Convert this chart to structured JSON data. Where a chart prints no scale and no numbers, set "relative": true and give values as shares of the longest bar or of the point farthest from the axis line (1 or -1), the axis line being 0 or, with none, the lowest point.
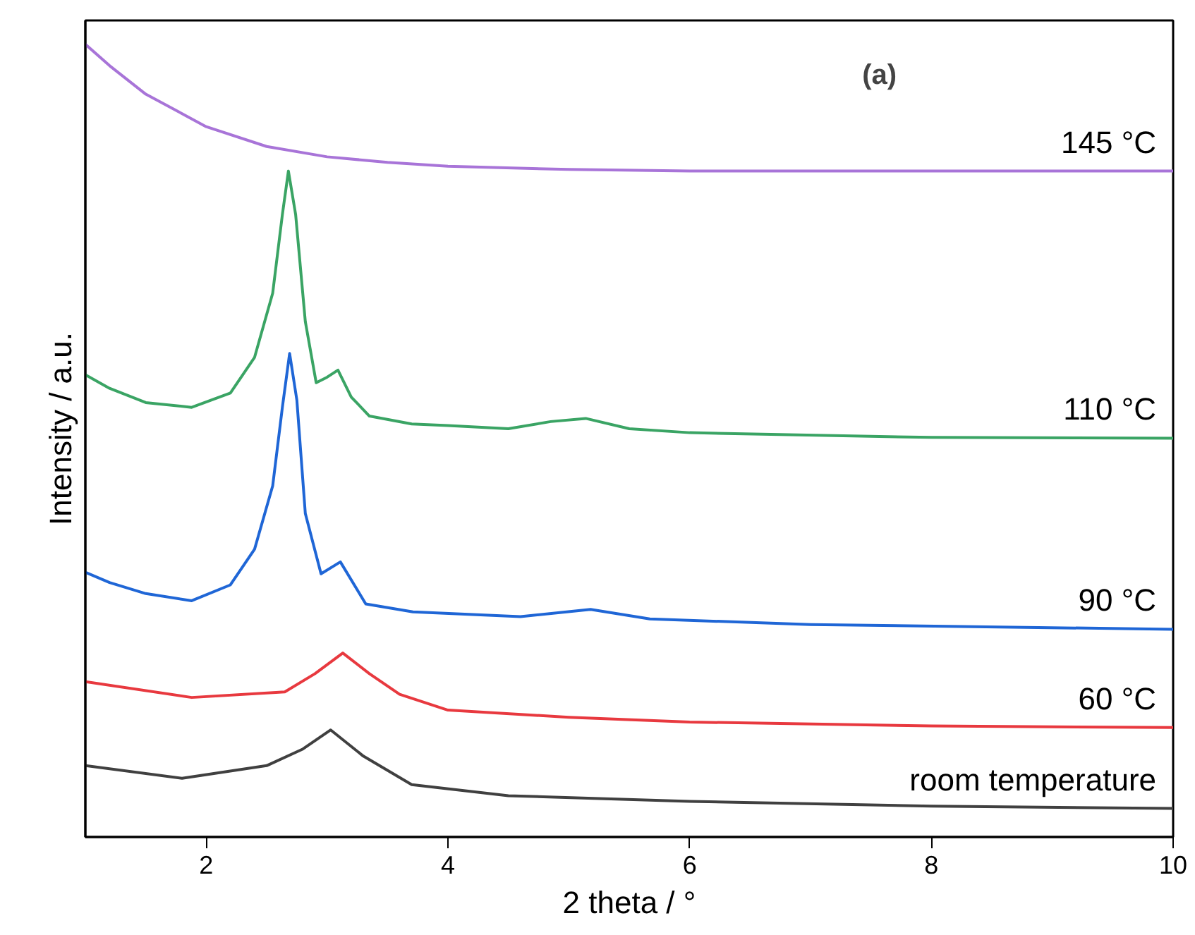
{
  "chart_data": {
    "type": "line",
    "relative": true,
    "xlabel": "2 theta / °",
    "ylabel": "Intensity / a.u.",
    "xlim": [
      1,
      10
    ],
    "xticks": [
      2,
      4,
      6,
      8,
      10
    ],
    "tick_labels": "x",
    "grid": false,
    "marker": "none",
    "line_style": "solid",
    "annotations": [
      "(a)"
    ],
    "series": [
      {
        "name": "room temperature",
        "color": "#404040",
        "x": [
          1,
          1.8,
          2.5,
          2.8,
          3.03,
          3.3,
          3.7,
          4.5,
          6,
          8,
          10
        ],
        "values": [
          0.09,
          0.074,
          0.09,
          0.111,
          0.135,
          0.102,
          0.066,
          0.052,
          0.045,
          0.039,
          0.036
        ]
      },
      {
        "name": "60 °C",
        "color": "#e8393f",
        "x": [
          1,
          1.88,
          2.65,
          2.9,
          3.13,
          3.35,
          3.6,
          4.0,
          5,
          6,
          8,
          10
        ],
        "values": [
          0.196,
          0.176,
          0.183,
          0.206,
          0.232,
          0.206,
          0.18,
          0.16,
          0.151,
          0.145,
          0.14,
          0.138
        ]
      },
      {
        "name": "90 °C",
        "color": "#1f66d6",
        "x": [
          1,
          1.2,
          1.5,
          1.88,
          2.2,
          2.4,
          2.55,
          2.63,
          2.69,
          2.75,
          2.82,
          2.95,
          3.11,
          3.32,
          3.71,
          4.6,
          5.18,
          5.67,
          7,
          10
        ],
        "values": [
          0.334,
          0.321,
          0.307,
          0.298,
          0.318,
          0.363,
          0.443,
          0.542,
          0.61,
          0.551,
          0.408,
          0.332,
          0.347,
          0.294,
          0.284,
          0.278,
          0.287,
          0.275,
          0.268,
          0.262
        ]
      },
      {
        "name": "110 °C",
        "color": "#3aa464",
        "x": [
          1,
          1.2,
          1.5,
          1.88,
          2.2,
          2.4,
          2.55,
          2.63,
          2.68,
          2.74,
          2.82,
          2.91,
          3.0,
          3.09,
          3.2,
          3.35,
          3.7,
          4.0,
          4.5,
          4.85,
          5.14,
          5.5,
          6,
          8,
          10
        ],
        "values": [
          0.583,
          0.566,
          0.548,
          0.542,
          0.56,
          0.605,
          0.686,
          0.785,
          0.84,
          0.785,
          0.65,
          0.573,
          0.58,
          0.589,
          0.555,
          0.531,
          0.521,
          0.519,
          0.515,
          0.524,
          0.528,
          0.515,
          0.51,
          0.504,
          0.503
        ]
      },
      {
        "name": "145 °C",
        "color": "#a874d8",
        "x": [
          1,
          1.2,
          1.5,
          2,
          2.5,
          3,
          3.5,
          4,
          5,
          6,
          8,
          10
        ],
        "values": [
          1.0,
          0.973,
          0.937,
          0.896,
          0.871,
          0.858,
          0.851,
          0.846,
          0.842,
          0.84,
          0.84,
          0.84
        ]
      }
    ]
  }
}
